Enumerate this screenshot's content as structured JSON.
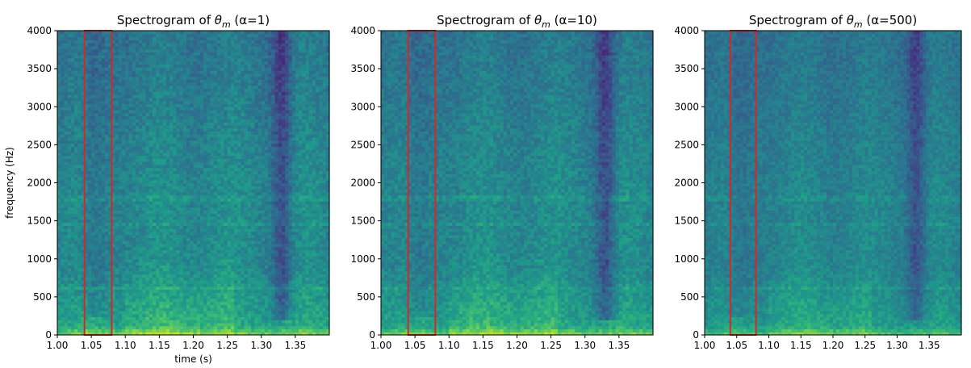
{
  "chart_data": [
    {
      "type": "heatmap",
      "title_prefix": "Spectrogram of ",
      "title_symbol": "θ",
      "title_subscript": "m",
      "title_suffix": " (α=1)",
      "xlabel": "time (s)",
      "ylabel": "frequency (Hz)",
      "xlim": [
        1.0,
        1.4
      ],
      "ylim": [
        0,
        4000
      ],
      "xticks": [
        "1.00",
        "1.05",
        "1.10",
        "1.15",
        "1.20",
        "1.25",
        "1.30",
        "1.35"
      ],
      "yticks": [
        "0",
        "500",
        "1000",
        "1500",
        "2000",
        "2500",
        "3000",
        "3500",
        "4000"
      ],
      "colormap": "viridis",
      "highlight_box": {
        "x": [
          1.04,
          1.08
        ],
        "y": [
          0,
          4000
        ],
        "color": "#d62728"
      },
      "intensity_scale": 1.0
    },
    {
      "type": "heatmap",
      "title_prefix": "Spectrogram of ",
      "title_symbol": "θ",
      "title_subscript": "m",
      "title_suffix": " (α=10)",
      "xlabel": "",
      "ylabel": "",
      "xlim": [
        1.0,
        1.4
      ],
      "ylim": [
        0,
        4000
      ],
      "xticks": [
        "1.00",
        "1.05",
        "1.10",
        "1.15",
        "1.20",
        "1.25",
        "1.30",
        "1.35"
      ],
      "yticks": [
        "0",
        "500",
        "1000",
        "1500",
        "2000",
        "2500",
        "3000",
        "3500",
        "4000"
      ],
      "colormap": "viridis",
      "highlight_box": {
        "x": [
          1.04,
          1.08
        ],
        "y": [
          0,
          4000
        ],
        "color": "#d62728"
      },
      "intensity_scale": 0.97
    },
    {
      "type": "heatmap",
      "title_prefix": "Spectrogram of ",
      "title_symbol": "θ",
      "title_subscript": "m",
      "title_suffix": " (α=500)",
      "xlabel": "",
      "ylabel": "",
      "xlim": [
        1.0,
        1.4
      ],
      "ylim": [
        0,
        4000
      ],
      "xticks": [
        "1.00",
        "1.05",
        "1.10",
        "1.15",
        "1.20",
        "1.25",
        "1.30",
        "1.35"
      ],
      "yticks": [
        "0",
        "500",
        "1000",
        "1500",
        "2000",
        "2500",
        "3000",
        "3500",
        "4000"
      ],
      "colormap": "viridis",
      "highlight_box": {
        "x": [
          1.04,
          1.08
        ],
        "y": [
          0,
          4000
        ],
        "color": "#d62728"
      },
      "intensity_scale": 0.85
    }
  ]
}
